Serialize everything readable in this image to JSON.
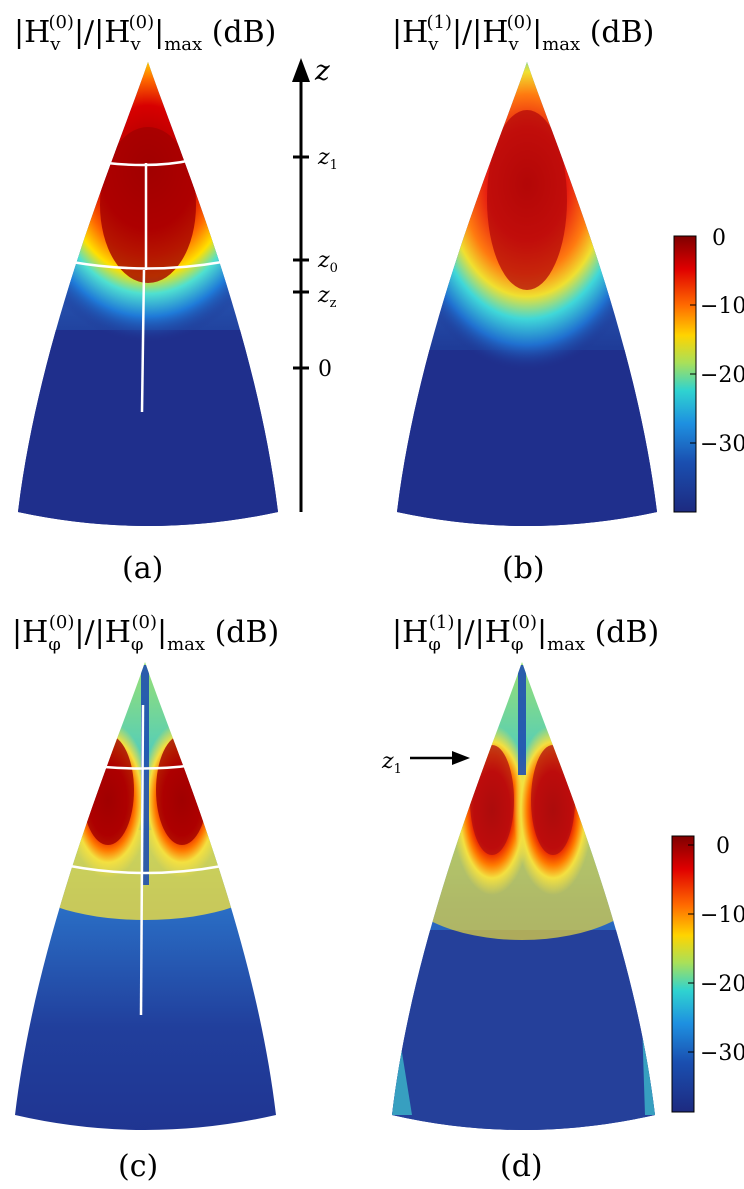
{
  "panels": [
    {
      "id": "a",
      "title": {
        "base": "|H",
        "sub": "v",
        "sup": "(0)",
        "mid": "|/|H",
        "sub2": "v",
        "sup2": "(0)",
        "tail": "|",
        "tailsub": "max",
        "unit": " (dB)"
      },
      "caption": "(a)"
    },
    {
      "id": "b",
      "title": {
        "base": "|H",
        "sub": "v",
        "sup": "(1)",
        "mid": "|/|H",
        "sub2": "v",
        "sup2": "(0)",
        "tail": "|",
        "tailsub": "max",
        "unit": " (dB)"
      },
      "caption": "(b)"
    },
    {
      "id": "c",
      "title": {
        "base": "|H",
        "sub": "φ",
        "sup": "(0)",
        "mid": "|/|H",
        "sub2": "φ",
        "sup2": "(0)",
        "tail": "|",
        "tailsub": "max",
        "unit": " (dB)"
      },
      "caption": "(c)"
    },
    {
      "id": "d",
      "title": {
        "base": "|H",
        "sub": "φ",
        "sup": "(1)",
        "mid": "|/|H",
        "sub2": "φ",
        "sup2": "(0)",
        "tail": "|",
        "tailsub": "max",
        "unit": " (dB)"
      },
      "caption": "(d)"
    }
  ],
  "z_axis": {
    "label": "z",
    "ticks": [
      {
        "base": "z",
        "sub": "1"
      },
      {
        "base": "z",
        "sub": "0"
      },
      {
        "base": "z",
        "sub": "z"
      },
      {
        "base": "0",
        "sub": ""
      }
    ]
  },
  "colorbar": {
    "ticks": [
      "0",
      "−10",
      "−20",
      "−30"
    ],
    "range_db": [
      -40,
      0
    ],
    "colormap": [
      "#7f0000",
      "#ff0000",
      "#ff8000",
      "#ffff00",
      "#80ff80",
      "#00ffff",
      "#0080ff",
      "#0000ff",
      "#1a237e"
    ]
  },
  "annotation_d": {
    "base": "z",
    "sub": "1"
  }
}
